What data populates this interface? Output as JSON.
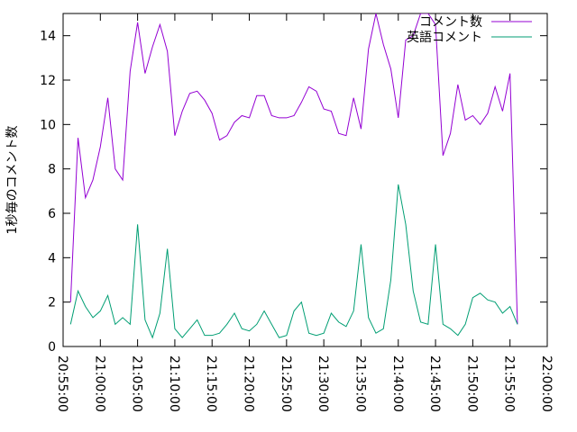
{
  "chart_data": {
    "type": "line",
    "ylabel": "1秒毎のコメント数",
    "x": [
      "20:56:00",
      "20:57:00",
      "20:58:00",
      "20:59:00",
      "21:00:00",
      "21:01:00",
      "21:02:00",
      "21:03:00",
      "21:04:00",
      "21:05:00",
      "21:06:00",
      "21:07:00",
      "21:08:00",
      "21:09:00",
      "21:10:00",
      "21:11:00",
      "21:12:00",
      "21:13:00",
      "21:14:00",
      "21:15:00",
      "21:16:00",
      "21:17:00",
      "21:18:00",
      "21:19:00",
      "21:20:00",
      "21:21:00",
      "21:22:00",
      "21:23:00",
      "21:24:00",
      "21:25:00",
      "21:26:00",
      "21:27:00",
      "21:28:00",
      "21:29:00",
      "21:30:00",
      "21:31:00",
      "21:32:00",
      "21:33:00",
      "21:34:00",
      "21:35:00",
      "21:36:00",
      "21:37:00",
      "21:38:00",
      "21:39:00",
      "21:40:00",
      "21:41:00",
      "21:42:00",
      "21:43:00",
      "21:44:00",
      "21:45:00",
      "21:46:00",
      "21:47:00",
      "21:48:00",
      "21:49:00",
      "21:50:00",
      "21:51:00",
      "21:52:00",
      "21:53:00",
      "21:54:00",
      "21:55:00",
      "21:56:00"
    ],
    "series": [
      {
        "name": "コメント数",
        "color": "#9400d3",
        "values": [
          2.0,
          9.4,
          6.7,
          7.5,
          9.0,
          11.2,
          8.0,
          7.5,
          12.4,
          14.6,
          12.3,
          13.5,
          14.5,
          13.3,
          9.5,
          10.6,
          11.4,
          11.5,
          11.1,
          10.5,
          9.3,
          9.5,
          10.1,
          10.4,
          10.3,
          11.3,
          11.3,
          10.4,
          10.3,
          10.3,
          10.4,
          11.0,
          11.7,
          11.5,
          10.7,
          10.6,
          9.6,
          9.5,
          11.2,
          9.8,
          13.4,
          15.0,
          13.6,
          12.5,
          10.3,
          13.8,
          14.0,
          15.0,
          15.0,
          14.5,
          8.6,
          9.6,
          11.8,
          10.2,
          10.4,
          10.0,
          10.5,
          11.7,
          10.6,
          12.3,
          1.0
        ]
      },
      {
        "name": "英語コメント",
        "color": "#009e73",
        "values": [
          1.0,
          2.5,
          1.8,
          1.3,
          1.6,
          2.3,
          1.0,
          1.3,
          1.0,
          5.5,
          1.2,
          0.4,
          1.5,
          4.4,
          0.8,
          0.4,
          0.8,
          1.2,
          0.5,
          0.5,
          0.6,
          1.0,
          1.5,
          0.8,
          0.7,
          1.0,
          1.6,
          1.0,
          0.4,
          0.5,
          1.6,
          2.0,
          0.6,
          0.5,
          0.6,
          1.5,
          1.1,
          0.9,
          1.6,
          4.6,
          1.3,
          0.6,
          0.8,
          3.0,
          7.3,
          5.5,
          2.5,
          1.1,
          1.0,
          4.6,
          1.0,
          0.8,
          0.5,
          1.0,
          2.2,
          2.4,
          2.1,
          2.0,
          1.5,
          1.8,
          1.0
        ]
      }
    ],
    "xlim": [
      "20:55:00",
      "22:00:00"
    ],
    "xticks": [
      "20:55:00",
      "21:00:00",
      "21:05:00",
      "21:10:00",
      "21:15:00",
      "21:20:00",
      "21:25:00",
      "21:30:00",
      "21:35:00",
      "21:40:00",
      "21:45:00",
      "21:50:00",
      "21:55:00",
      "22:00:00"
    ],
    "ylim": [
      0,
      15
    ],
    "yticks": [
      0,
      2,
      4,
      6,
      8,
      10,
      12,
      14
    ],
    "legend": "top-right"
  }
}
